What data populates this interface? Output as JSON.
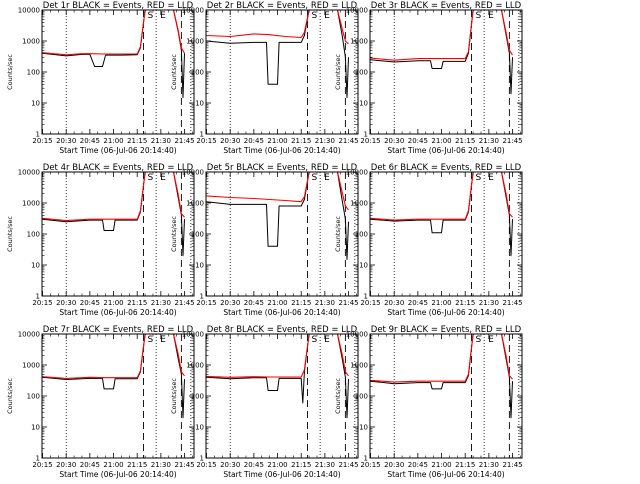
{
  "chart_data": [
    {
      "type": "line",
      "title": "Det 1r BLACK = Events, RED = LLD",
      "xlabel": "Start Time (06-Jul-06 20:14:40)",
      "ylabel": "Counts/sec",
      "x_ticks": [
        "20:15",
        "20:30",
        "20:45",
        "21:00",
        "21:15",
        "21:30",
        "21:45"
      ],
      "y_ticks": [
        "1",
        "10",
        "100",
        "1000",
        "10000"
      ],
      "ylog": true,
      "ylim": [
        1,
        10000
      ],
      "markers": [
        "S",
        "E"
      ],
      "dash_lines": [
        "21:19",
        "21:43"
      ],
      "dot_lines": [
        "20:30",
        "21:27",
        "21:49"
      ],
      "series": [
        {
          "color": "#000000",
          "x": [
            "20:15",
            "20:30",
            "20:40",
            "20:45",
            "20:48",
            "20:53",
            "20:55",
            "21:05",
            "21:15",
            "21:17",
            "21:20",
            "21:24",
            "21:38",
            "21:41",
            "21:43",
            "21:44",
            "21:45"
          ],
          "y": [
            400,
            330,
            370,
            370,
            150,
            150,
            350,
            350,
            360,
            600,
            10000,
            10000,
            10000,
            2000,
            500,
            15,
            400
          ]
        },
        {
          "color": "#ff0000",
          "x": [
            "20:15",
            "20:30",
            "20:40",
            "20:45",
            "20:55",
            "21:05",
            "21:15",
            "21:17",
            "21:20",
            "21:24",
            "21:38",
            "21:41",
            "21:43",
            "21:45"
          ],
          "y": [
            420,
            360,
            390,
            390,
            380,
            380,
            380,
            650,
            10000,
            10000,
            10000,
            2200,
            600,
            400
          ]
        }
      ]
    },
    {
      "type": "line",
      "title": "Det 2r BLACK = Events, RED = LLD",
      "xlabel": "Start Time (06-Jul-06 20:14:40)",
      "ylabel": "Counts/sec",
      "x_ticks": [
        "20:15",
        "20:30",
        "20:45",
        "21:00",
        "21:15",
        "21:30",
        "21:45"
      ],
      "y_ticks": [
        "1",
        "10",
        "100",
        "1000",
        "10000"
      ],
      "ylog": true,
      "ylim": [
        1,
        10000
      ],
      "markers": [
        "S",
        "E"
      ],
      "dash_lines": [
        "21:19",
        "21:43"
      ],
      "dot_lines": [
        "20:30",
        "21:27",
        "21:49"
      ],
      "series": [
        {
          "color": "#000000",
          "x": [
            "20:15",
            "20:30",
            "20:45",
            "20:53",
            "20:54",
            "21:00",
            "21:01",
            "21:15",
            "21:17",
            "21:20",
            "21:24",
            "21:38",
            "21:41",
            "21:43",
            "21:44",
            "21:45"
          ],
          "y": [
            1000,
            850,
            900,
            900,
            40,
            40,
            900,
            900,
            1500,
            10000,
            10000,
            10000,
            1500,
            300,
            15,
            300
          ]
        },
        {
          "color": "#ff0000",
          "x": [
            "20:15",
            "20:30",
            "20:45",
            "20:55",
            "21:05",
            "21:15",
            "21:17",
            "21:20",
            "21:24",
            "21:38",
            "21:41",
            "21:43",
            "21:45"
          ],
          "y": [
            1500,
            1400,
            1700,
            1600,
            1400,
            1300,
            1900,
            10000,
            10000,
            10000,
            2500,
            1000,
            800
          ]
        }
      ]
    },
    {
      "type": "line",
      "title": "Det 3r BLACK = Events, RED = LLD",
      "xlabel": "Start Time (06-Jul-06 20:14:40)",
      "ylabel": "Counts/sec",
      "x_ticks": [
        "20:15",
        "20:30",
        "20:45",
        "21:00",
        "21:15",
        "21:30",
        "21:45"
      ],
      "y_ticks": [
        "1",
        "10",
        "100",
        "1000",
        "10000"
      ],
      "ylog": true,
      "ylim": [
        1,
        10000
      ],
      "markers": [
        "S",
        "E"
      ],
      "dash_lines": [
        "21:19",
        "21:43"
      ],
      "dot_lines": [
        "20:30",
        "21:27",
        "21:49"
      ],
      "series": [
        {
          "color": "#000000",
          "x": [
            "20:15",
            "20:30",
            "20:45",
            "20:53",
            "20:54",
            "21:00",
            "21:01",
            "21:15",
            "21:17",
            "21:20",
            "21:24",
            "21:38",
            "21:41",
            "21:43",
            "21:44",
            "21:45"
          ],
          "y": [
            250,
            210,
            230,
            230,
            130,
            130,
            220,
            220,
            400,
            10000,
            10000,
            10000,
            1500,
            400,
            20,
            300
          ]
        },
        {
          "color": "#ff0000",
          "x": [
            "20:15",
            "20:30",
            "20:45",
            "20:55",
            "21:05",
            "21:15",
            "21:17",
            "21:20",
            "21:24",
            "21:38",
            "21:41",
            "21:43",
            "21:45"
          ],
          "y": [
            280,
            240,
            270,
            270,
            270,
            270,
            450,
            10000,
            10000,
            10000,
            1800,
            500,
            350
          ]
        }
      ]
    },
    {
      "type": "line",
      "title": "Det 4r BLACK = Events, RED = LLD",
      "xlabel": "Start Time (06-Jul-06 20:14:40)",
      "ylabel": "Counts/sec",
      "x_ticks": [
        "20:15",
        "20:30",
        "20:45",
        "21:00",
        "21:15",
        "21:30",
        "21:45"
      ],
      "y_ticks": [
        "1",
        "10",
        "100",
        "1000",
        "10000"
      ],
      "ylog": true,
      "ylim": [
        1,
        10000
      ],
      "markers": [
        "S",
        "E"
      ],
      "dash_lines": [
        "21:19",
        "21:43"
      ],
      "dot_lines": [
        "20:30",
        "21:27",
        "21:49"
      ],
      "series": [
        {
          "color": "#000000",
          "x": [
            "20:15",
            "20:30",
            "20:45",
            "20:53",
            "20:54",
            "21:00",
            "21:01",
            "21:15",
            "21:17",
            "21:20",
            "21:24",
            "21:38",
            "21:41",
            "21:43",
            "21:44",
            "21:45"
          ],
          "y": [
            300,
            250,
            280,
            280,
            130,
            130,
            280,
            280,
            500,
            10000,
            10000,
            10000,
            1500,
            400,
            20,
            300
          ]
        },
        {
          "color": "#ff0000",
          "x": [
            "20:15",
            "20:30",
            "20:45",
            "20:55",
            "21:05",
            "21:15",
            "21:17",
            "21:20",
            "21:24",
            "21:38",
            "21:41",
            "21:43",
            "21:45"
          ],
          "y": [
            320,
            270,
            300,
            300,
            300,
            300,
            550,
            10000,
            10000,
            10000,
            1900,
            450,
            350
          ]
        }
      ]
    },
    {
      "type": "line",
      "title": "Det 5r BLACK = Events, RED = LLD",
      "xlabel": "Start Time (06-Jul-06 20:14:40)",
      "ylabel": "Counts/sec",
      "x_ticks": [
        "20:15",
        "20:30",
        "20:45",
        "21:00",
        "21:15",
        "21:30",
        "21:45"
      ],
      "y_ticks": [
        "1",
        "10",
        "100",
        "1000",
        "10000"
      ],
      "ylog": true,
      "ylim": [
        1,
        10000
      ],
      "markers": [
        "S",
        "E"
      ],
      "dash_lines": [
        "21:19",
        "21:43"
      ],
      "dot_lines": [
        "20:30",
        "21:27",
        "21:49"
      ],
      "series": [
        {
          "color": "#000000",
          "x": [
            "20:15",
            "20:30",
            "20:45",
            "20:53",
            "20:54",
            "21:00",
            "21:01",
            "21:15",
            "21:17",
            "21:20",
            "21:24",
            "21:38",
            "21:41",
            "21:43",
            "21:44",
            "21:45"
          ],
          "y": [
            1100,
            900,
            900,
            900,
            40,
            40,
            800,
            800,
            1300,
            10000,
            10000,
            10000,
            1200,
            300,
            15,
            250
          ]
        },
        {
          "color": "#ff0000",
          "x": [
            "20:15",
            "20:30",
            "20:45",
            "20:55",
            "21:05",
            "21:15",
            "21:17",
            "21:20",
            "21:24",
            "21:38",
            "21:41",
            "21:43",
            "21:45"
          ],
          "y": [
            1700,
            1500,
            1400,
            1300,
            1200,
            1100,
            1600,
            10000,
            10000,
            10000,
            2200,
            800,
            600
          ]
        }
      ]
    },
    {
      "type": "line",
      "title": "Det 6r BLACK = Events, RED = LLD",
      "xlabel": "Start Time (06-Jul-06 20:14:40)",
      "ylabel": "Counts/sec",
      "x_ticks": [
        "20:15",
        "20:30",
        "20:45",
        "21:00",
        "21:15",
        "21:30",
        "21:45"
      ],
      "y_ticks": [
        "1",
        "10",
        "100",
        "1000",
        "10000"
      ],
      "ylog": true,
      "ylim": [
        1,
        10000
      ],
      "markers": [
        "S",
        "E"
      ],
      "dash_lines": [
        "21:19",
        "21:43"
      ],
      "dot_lines": [
        "20:30",
        "21:27",
        "21:49"
      ],
      "series": [
        {
          "color": "#000000",
          "x": [
            "20:15",
            "20:30",
            "20:45",
            "20:53",
            "20:54",
            "21:00",
            "21:01",
            "21:15",
            "21:17",
            "21:20",
            "21:24",
            "21:38",
            "21:41",
            "21:43",
            "21:44",
            "21:45"
          ],
          "y": [
            300,
            260,
            280,
            280,
            110,
            110,
            280,
            280,
            500,
            10000,
            10000,
            10000,
            1500,
            400,
            20,
            300
          ]
        },
        {
          "color": "#ff0000",
          "x": [
            "20:15",
            "20:30",
            "20:45",
            "20:55",
            "21:05",
            "21:15",
            "21:17",
            "21:20",
            "21:24",
            "21:38",
            "21:41",
            "21:43",
            "21:45"
          ],
          "y": [
            320,
            280,
            300,
            300,
            300,
            300,
            550,
            10000,
            10000,
            10000,
            1900,
            450,
            350
          ]
        }
      ]
    },
    {
      "type": "line",
      "title": "Det 7r BLACK = Events, RED = LLD",
      "xlabel": "Start Time (06-Jul-06 20:14:40)",
      "ylabel": "Counts/sec",
      "x_ticks": [
        "20:15",
        "20:30",
        "20:45",
        "21:00",
        "21:15",
        "21:30",
        "21:45"
      ],
      "y_ticks": [
        "1",
        "10",
        "100",
        "1000",
        "10000"
      ],
      "ylog": true,
      "ylim": [
        1,
        10000
      ],
      "markers": [
        "S",
        "E"
      ],
      "dash_lines": [
        "21:19",
        "21:43"
      ],
      "dot_lines": [
        "20:30",
        "21:27",
        "21:49"
      ],
      "series": [
        {
          "color": "#000000",
          "x": [
            "20:15",
            "20:30",
            "20:45",
            "20:53",
            "20:54",
            "21:00",
            "21:01",
            "21:15",
            "21:17",
            "21:20",
            "21:24",
            "21:38",
            "21:41",
            "21:43",
            "21:44",
            "21:45"
          ],
          "y": [
            400,
            340,
            370,
            370,
            170,
            170,
            360,
            360,
            600,
            10000,
            10000,
            10000,
            1600,
            500,
            20,
            350
          ]
        },
        {
          "color": "#ff0000",
          "x": [
            "20:15",
            "20:30",
            "20:45",
            "20:55",
            "21:05",
            "21:15",
            "21:17",
            "21:20",
            "21:24",
            "21:38",
            "21:41",
            "21:43",
            "21:45"
          ],
          "y": [
            420,
            370,
            400,
            390,
            390,
            390,
            650,
            10000,
            10000,
            10000,
            2200,
            600,
            450
          ]
        }
      ]
    },
    {
      "type": "line",
      "title": "Det 8r BLACK = Events, RED = LLD",
      "xlabel": "Start Time (06-Jul-06 20:14:40)",
      "ylabel": "Counts/sec",
      "x_ticks": [
        "20:15",
        "20:30",
        "20:45",
        "21:00",
        "21:15",
        "21:30",
        "21:45"
      ],
      "y_ticks": [
        "1",
        "10",
        "100",
        "1000",
        "10000"
      ],
      "ylog": true,
      "ylim": [
        1,
        10000
      ],
      "markers": [
        "S",
        "E"
      ],
      "dash_lines": [
        "21:19",
        "21:43"
      ],
      "dot_lines": [
        "20:30",
        "21:27",
        "21:49"
      ],
      "series": [
        {
          "color": "#000000",
          "x": [
            "20:15",
            "20:30",
            "20:45",
            "20:53",
            "20:54",
            "21:00",
            "21:01",
            "21:15",
            "21:16",
            "21:17",
            "21:20",
            "21:24",
            "21:38",
            "21:41",
            "21:43",
            "21:44",
            "21:45"
          ],
          "y": [
            400,
            360,
            390,
            390,
            150,
            150,
            370,
            370,
            60,
            600,
            10000,
            10000,
            10000,
            1600,
            400,
            20,
            350
          ]
        },
        {
          "color": "#ff0000",
          "x": [
            "20:15",
            "20:30",
            "20:45",
            "20:55",
            "21:05",
            "21:15",
            "21:17",
            "21:20",
            "21:24",
            "21:38",
            "21:41",
            "21:43",
            "21:45"
          ],
          "y": [
            430,
            400,
            420,
            410,
            410,
            410,
            700,
            10000,
            10000,
            10000,
            2200,
            600,
            450
          ]
        }
      ]
    },
    {
      "type": "line",
      "title": "Det 9r BLACK = Events, RED = LLD",
      "xlabel": "Start Time (06-Jul-06 20:14:40)",
      "ylabel": "Counts/sec",
      "x_ticks": [
        "20:15",
        "20:30",
        "20:45",
        "21:00",
        "21:15",
        "21:30",
        "21:45"
      ],
      "y_ticks": [
        "1",
        "10",
        "100",
        "1000",
        "10000"
      ],
      "ylog": true,
      "ylim": [
        1,
        10000
      ],
      "markers": [
        "S",
        "E"
      ],
      "dash_lines": [
        "21:19",
        "21:43"
      ],
      "dot_lines": [
        "20:30",
        "21:27",
        "21:49"
      ],
      "series": [
        {
          "color": "#000000",
          "x": [
            "20:15",
            "20:30",
            "20:45",
            "20:53",
            "20:54",
            "21:00",
            "21:01",
            "21:15",
            "21:17",
            "21:20",
            "21:24",
            "21:38",
            "21:41",
            "21:43",
            "21:44",
            "21:45"
          ],
          "y": [
            300,
            250,
            270,
            270,
            170,
            170,
            270,
            270,
            450,
            10000,
            10000,
            10000,
            1500,
            400,
            20,
            300
          ]
        },
        {
          "color": "#ff0000",
          "x": [
            "20:15",
            "20:30",
            "20:45",
            "20:55",
            "21:05",
            "21:15",
            "21:17",
            "21:20",
            "21:24",
            "21:38",
            "21:41",
            "21:43",
            "21:45"
          ],
          "y": [
            320,
            280,
            300,
            300,
            300,
            300,
            500,
            10000,
            10000,
            10000,
            1900,
            450,
            350
          ]
        }
      ]
    }
  ]
}
